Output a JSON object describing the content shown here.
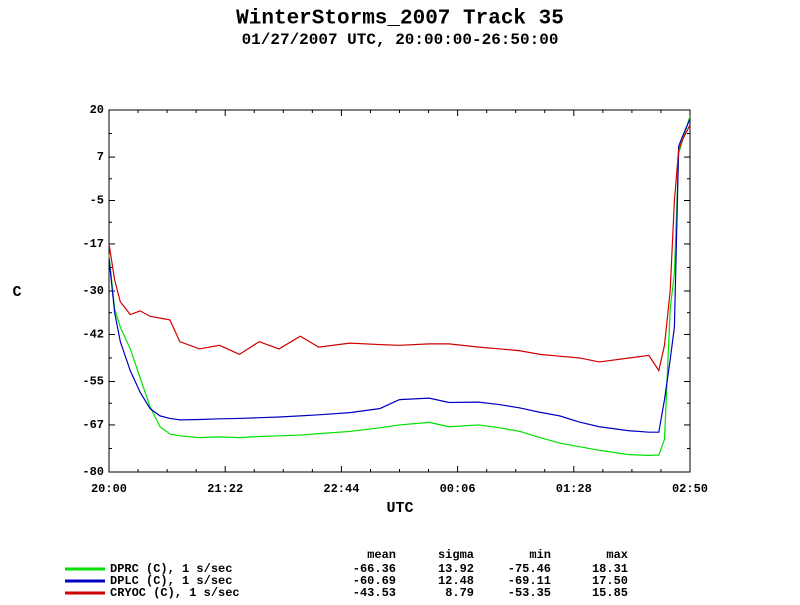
{
  "chart_data": {
    "type": "line",
    "title": "WinterStorms_2007 Track 35",
    "subtitle": "01/27/2007 UTC, 20:00:00-26:50:00",
    "x_label": "UTC",
    "y_label": "C",
    "xlim": [
      0,
      410
    ],
    "xticks": [
      {
        "value": 0,
        "label": "20:00"
      },
      {
        "value": 82,
        "label": "21:22"
      },
      {
        "value": 164,
        "label": "22:44"
      },
      {
        "value": 246,
        "label": "00:06"
      },
      {
        "value": 328,
        "label": "01:28"
      },
      {
        "value": 410,
        "label": "02:50"
      }
    ],
    "ylim": [
      -80,
      20
    ],
    "yticks": [
      -80,
      -67,
      -55,
      -42,
      -30,
      -17,
      -5,
      7,
      20
    ],
    "x": [
      0,
      4,
      8,
      15,
      22,
      29,
      36,
      43,
      50,
      64,
      78,
      92,
      106,
      120,
      135,
      148,
      170,
      191,
      205,
      226,
      240,
      261,
      276,
      290,
      304,
      318,
      332,
      346,
      367,
      381,
      388,
      392,
      396,
      399,
      402,
      405,
      410
    ],
    "stats_columns": [
      "mean",
      "sigma",
      "min",
      "max"
    ],
    "series": [
      {
        "name": "DPRC (C), 1 s/sec",
        "color": "#00e000",
        "values": [
          -20,
          -35,
          -40,
          -46,
          -54,
          -62,
          -67.5,
          -69.5,
          -70,
          -70.5,
          -70.3,
          -70.5,
          -70.2,
          -70,
          -69.8,
          -69.4,
          -68.8,
          -67.8,
          -67,
          -66.3,
          -67.5,
          -67,
          -67.8,
          -68.8,
          -70.5,
          -72,
          -73,
          -74,
          -75.2,
          -75.4,
          -75.3,
          -71,
          -35,
          -25,
          8,
          12,
          18.3
        ],
        "stats": [
          "-66.36",
          "13.92",
          "-75.46",
          "18.31"
        ]
      },
      {
        "name": "DPLC (C), 1 s/sec",
        "color": "#0000c0",
        "values": [
          -21,
          -36,
          -44,
          -52,
          -58,
          -62.5,
          -64.5,
          -65.2,
          -65.6,
          -65.5,
          -65.3,
          -65.2,
          -65,
          -64.8,
          -64.5,
          -64.2,
          -63.6,
          -62.5,
          -60,
          -59.6,
          -60.8,
          -60.7,
          -61.4,
          -62.3,
          -63.5,
          -64.5,
          -66.2,
          -67.5,
          -68.6,
          -69,
          -69,
          -60,
          -49,
          -40,
          10,
          13,
          17.5
        ],
        "stats": [
          "-60.69",
          "12.48",
          "-69.11",
          "17.50"
        ]
      },
      {
        "name": "CRYOC (C), 1 s/sec",
        "color": "#d00000",
        "values": [
          -17,
          -27,
          -33,
          -36.5,
          -35.5,
          -37,
          -37.5,
          -38,
          -44,
          -46,
          -45,
          -47.5,
          -44,
          -46,
          -42.5,
          -45.5,
          -44.4,
          -44.8,
          -45,
          -44.6,
          -44.6,
          -45.5,
          -46,
          -46.5,
          -47.5,
          -48,
          -48.5,
          -49.6,
          -48.5,
          -47.8,
          -52,
          -45,
          -30,
          -5,
          9,
          12,
          15.9
        ],
        "stats": [
          "-43.53",
          "8.79",
          "-53.35",
          "15.85"
        ]
      }
    ]
  }
}
